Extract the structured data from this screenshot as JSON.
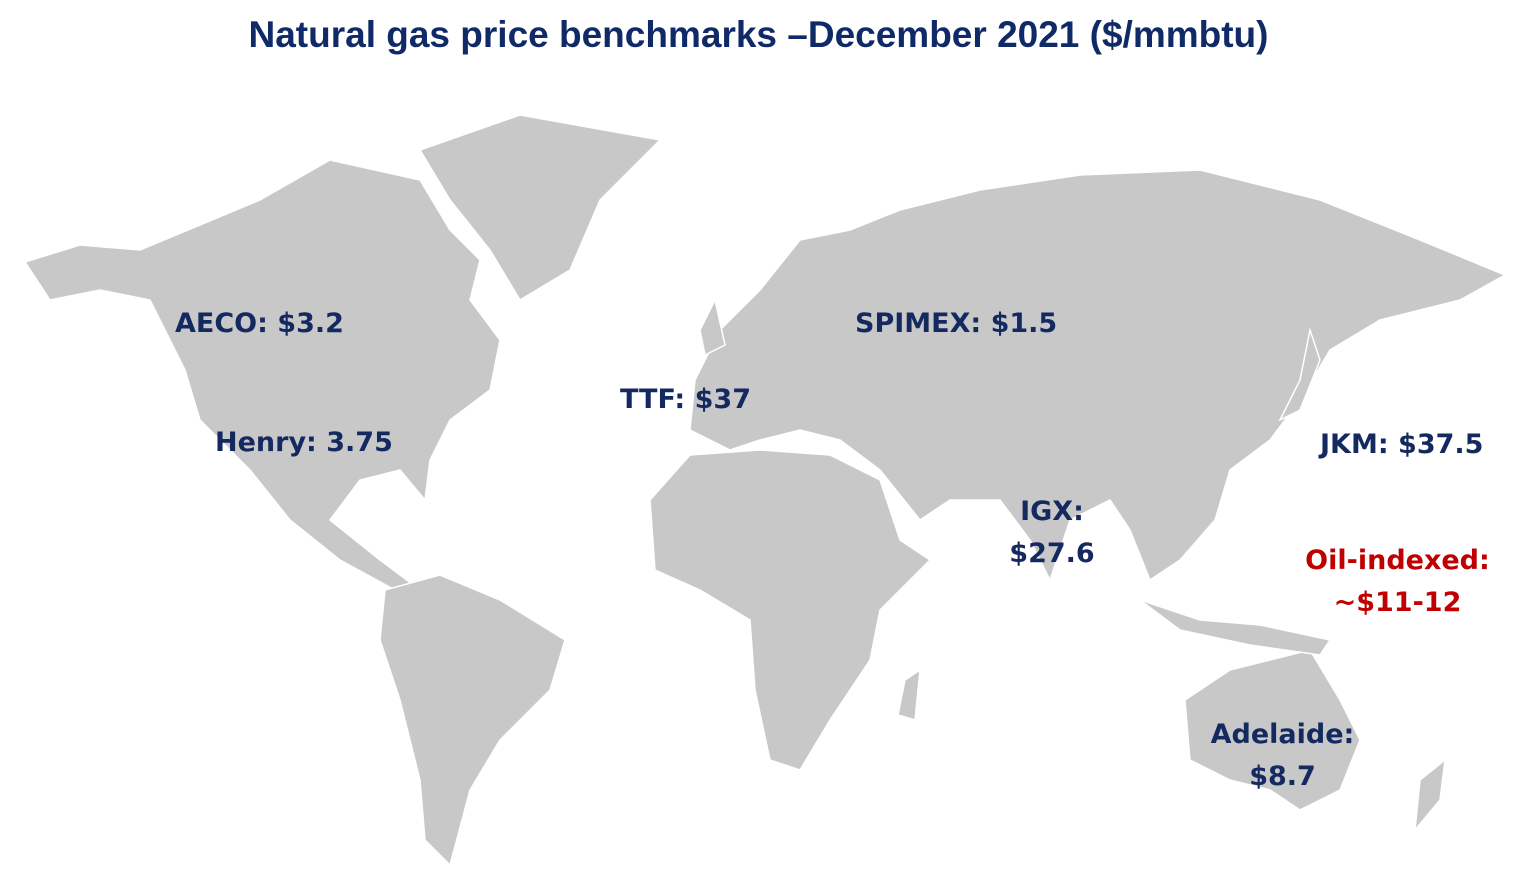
{
  "title": "Natural gas price benchmarks –December 2021 ($/mmbtu)",
  "colors": {
    "land": "#c8c8c8",
    "borders": "#ffffff",
    "label": "#14295f",
    "highlight": "#c00000",
    "title": "#0f2a66"
  },
  "benchmarks": [
    {
      "line1": "AECO: $3.2",
      "line2": ""
    },
    {
      "line1": "Henry: 3.75",
      "line2": ""
    },
    {
      "line1": "TTF: $37",
      "line2": ""
    },
    {
      "line1": "SPIMEX: $1.5",
      "line2": ""
    },
    {
      "line1": "JKM: $37.5",
      "line2": ""
    },
    {
      "line1": "IGX:",
      "line2": "$27.6"
    },
    {
      "line1": "Oil-indexed:",
      "line2": "~$11-12"
    },
    {
      "line1": "Adelaide:",
      "line2": "$8.7"
    }
  ]
}
